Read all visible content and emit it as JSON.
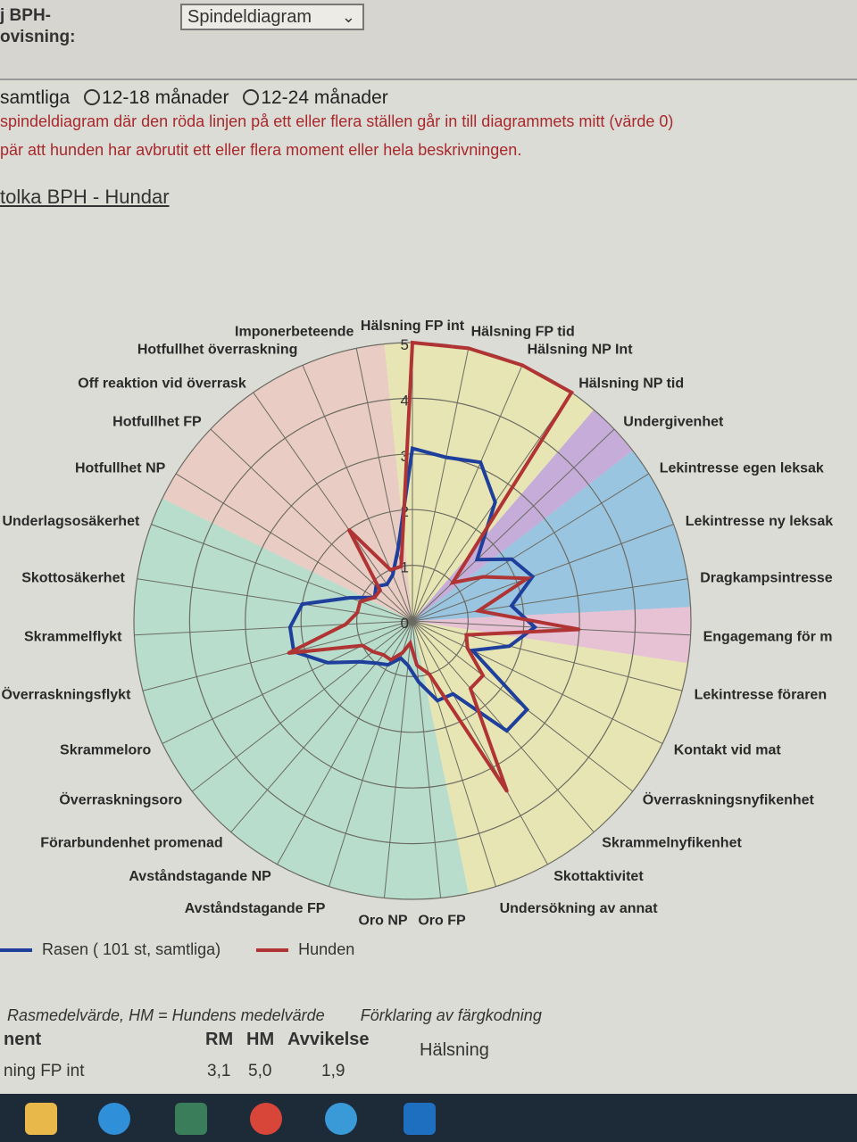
{
  "header": {
    "page_label_1": "j BPH-",
    "page_label_2": "ovisning:",
    "view_select_value": "Spindeldiagram"
  },
  "filters": {
    "option_all": "samtliga",
    "option_12_18": "12-18 månader",
    "option_12_24": "12-24 månader"
  },
  "notes": {
    "line1": "spindeldiagram där den röda linjen på ett eller flera ställen går in till diagrammets mitt (värde 0)",
    "line2": "pär att hunden har avbrutit ett eller flera moment eller hela beskrivningen."
  },
  "link_text": "tolka BPH - Hundar",
  "chart_data": {
    "type": "radar",
    "rlim": [
      0,
      5
    ],
    "r_ticks": [
      "0",
      "1",
      "2",
      "3",
      "4",
      "5"
    ],
    "categories": [
      "Hälsning FP int",
      "Hälsning FP tid",
      "Hälsning NP Int",
      "Hälsning NP tid",
      "Undergivenhet",
      "Lekintresse egen leksak",
      "Lekintresse ny leksak",
      "Dragkampsintresse",
      "Engagemang för m",
      "Lekintresse föraren",
      "Kontakt vid mat",
      "Överraskningsnyfikenhet",
      "Skrammelnyfikenhet",
      "Skottaktivitet",
      "Undersökning av annat",
      "Oro FP",
      "Oro NP",
      "Avståndstagande FP",
      "Avståndstagande NP",
      "Förarbundenhet promenad",
      "Överraskningsoro",
      "Skrammeloro",
      "Överraskningsflykt",
      "Skrammelflykt",
      "Skottosäkerhet",
      "Underlagsosäkerhet",
      "Hotfullhet NP",
      "Hotfullhet FP",
      "Off reaktion vid överrask",
      "Hotfullhet överraskning",
      "Imponerbeteende"
    ],
    "series": [
      {
        "name": "Rasen ( 101 st, samtliga)",
        "color": "#1f3f9c",
        "values": [
          3.1,
          3.0,
          3.1,
          2.6,
          1.6,
          2.1,
          2.3,
          1.8,
          2.2,
          1.8,
          1.2,
          2.6,
          2.6,
          1.5,
          1.5,
          1.1,
          0.8,
          0.7,
          0.9,
          1.0,
          1.2,
          1.7,
          2.2,
          2.2,
          2.0,
          1.2,
          0.8,
          0.9,
          0.8,
          0.9,
          1.3
        ]
      },
      {
        "name": "Hunden",
        "color": "#b03434",
        "values": [
          5.0,
          5.0,
          5.0,
          5.0,
          1.0,
          1.5,
          2.2,
          1.2,
          3.0,
          1.0,
          1.1,
          1.6,
          1.6,
          3.5,
          1.0,
          0.8,
          0.4,
          0.6,
          0.8,
          0.8,
          0.9,
          1.0,
          2.3,
          1.2,
          1.0,
          1.0,
          0.8,
          0.8,
          2.0,
          1.0,
          1.0
        ]
      }
    ],
    "sectors": [
      {
        "from": 0,
        "to": 3,
        "color": "#e6e08c"
      },
      {
        "from": 4,
        "to": 4,
        "color": "#a978d0"
      },
      {
        "from": 5,
        "to": 7,
        "color": "#5aa6dd"
      },
      {
        "from": 8,
        "to": 8,
        "color": "#e69fc6"
      },
      {
        "from": 9,
        "to": 14,
        "color": "#e6e08c"
      },
      {
        "from": 15,
        "to": 25,
        "color": "#8fd1b8"
      },
      {
        "from": 26,
        "to": 30,
        "color": "#eab2a8"
      }
    ]
  },
  "legend": {
    "series_a": "Rasen ( 101 st, samtliga)",
    "series_b": "Hunden"
  },
  "footer": {
    "abbr_line": "Rasmedelvärde,    HM = Hundens medelvärde",
    "color_expl": "Förklaring av färgkodning",
    "col_moment": "nent",
    "col_rm": "RM",
    "col_hm": "HM",
    "col_dev": "Avvikelse",
    "row1_moment": "ning FP int",
    "row1_rm": "3,1",
    "row1_hm": "5,0",
    "row1_dev": "1,9",
    "expl_row1": "Hälsning"
  },
  "taskbar_icons": [
    "file-explorer-icon",
    "edge-icon",
    "app-s-icon",
    "chrome-icon",
    "ie-icon",
    "outlook-icon"
  ]
}
